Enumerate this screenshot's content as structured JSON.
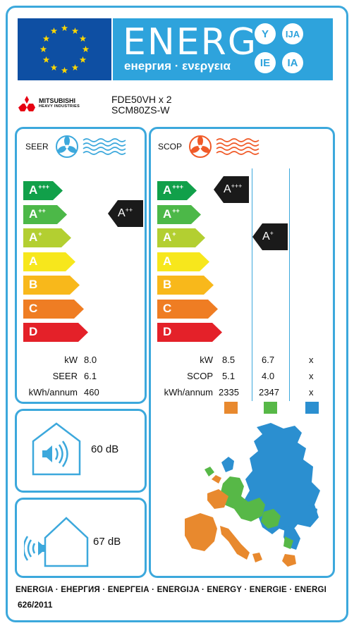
{
  "header": {
    "energy_word": "ENERG",
    "energy_subtitle": "енергия · ενεργεια",
    "suffixes": [
      "Y",
      "IJA",
      "IE",
      "IA"
    ]
  },
  "brand": {
    "line1": "MITSUBISHI",
    "line2": "HEAVY INDUSTRIES",
    "logo": "three-diamond-logo"
  },
  "model": {
    "indoor": "FDE50VH x 2",
    "outdoor": "SCM80ZS-W"
  },
  "scale_labels": [
    {
      "base": "A",
      "sup": "+++",
      "color": "#11a04a"
    },
    {
      "base": "A",
      "sup": "++",
      "color": "#4cb848"
    },
    {
      "base": "A",
      "sup": "+",
      "color": "#b3cf31"
    },
    {
      "base": "A",
      "sup": "",
      "color": "#f7e71c"
    },
    {
      "base": "B",
      "sup": "",
      "color": "#f8b81b"
    },
    {
      "base": "C",
      "sup": "",
      "color": "#ef7d23"
    },
    {
      "base": "D",
      "sup": "",
      "color": "#e42129"
    }
  ],
  "cooling": {
    "title": "SEER",
    "icon": "fan-cooling-icon",
    "rating": {
      "base": "A",
      "sup": "++"
    },
    "rows": [
      {
        "label": "kW",
        "value": "8.0"
      },
      {
        "label": "SEER",
        "value": "6.1"
      },
      {
        "label": "kWh/annum",
        "value": "460"
      }
    ]
  },
  "heating": {
    "title": "SCOP",
    "icon": "fan-heating-icon",
    "ratings": [
      {
        "base": "A",
        "sup": "+++"
      },
      {
        "base": "A",
        "sup": "+"
      }
    ],
    "rows": [
      {
        "label": "kW",
        "values": [
          "8.5",
          "6.7",
          "x"
        ]
      },
      {
        "label": "SCOP",
        "values": [
          "5.1",
          "4.0",
          "x"
        ]
      },
      {
        "label": "kWh/annum",
        "values": [
          "2335",
          "2347",
          "x"
        ]
      }
    ],
    "zone_colors": [
      "#e8892e",
      "#57b847",
      "#2b8fd0"
    ]
  },
  "noise": {
    "indoor": {
      "value": "60",
      "unit": "dB",
      "icon": "indoor-speaker-icon"
    },
    "outdoor": {
      "value": "67",
      "unit": "dB",
      "icon": "outdoor-speaker-icon"
    }
  },
  "footer": {
    "energy_line": "ENERGIA · ЕНЕРГИЯ · ΕΝΕΡΓΕΙΑ · ENERGIJA · ENERGY · ENERGIE · ENERGI",
    "regulation": "626/2011"
  }
}
